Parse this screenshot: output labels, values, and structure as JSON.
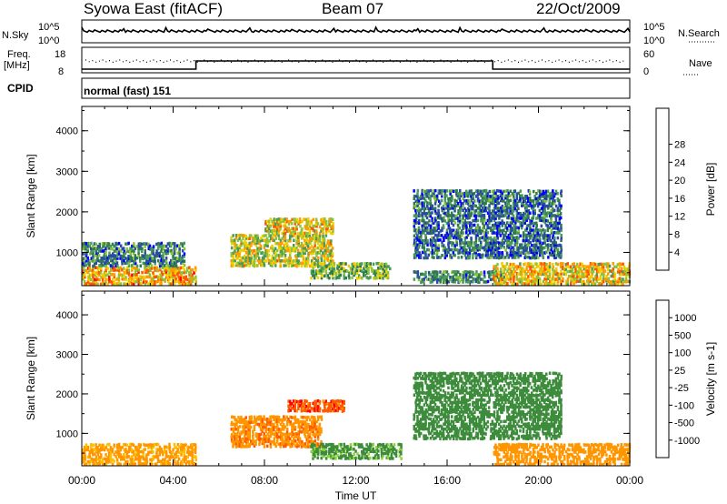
{
  "header": {
    "station": "Syowa East (fitACF)",
    "beam": "Beam 07",
    "date": "22/Oct/2009"
  },
  "top_panels": {
    "nsky_label": "N.Sky",
    "nsky_high": "10^5",
    "nsky_low": "10^0",
    "nsearch_label": "N.Search",
    "nsearch_high": "10^5",
    "nsearch_low": "10^0",
    "freq_label_1": "Freq.",
    "freq_label_2": "[MHz]",
    "freq_high": "18",
    "freq_low": "8",
    "nave_high": "60",
    "nave_low": "0",
    "nave_label": "Nave",
    "cpid_label": "CPID",
    "cpid_text": "normal (fast) 151"
  },
  "colors": {
    "power_scale": [
      "#0000ff",
      "#2a4aa8",
      "#2e7a4a",
      "#4a9a5a",
      "#8cc43c",
      "#f0d000",
      "#ff9a00",
      "#ff5500",
      "#ff0000"
    ],
    "velocity_scale": [
      "#ff0000",
      "#ff5a00",
      "#ff9600",
      "#ffbe00",
      "#c8c8c8",
      "#8cd23c",
      "#3c8c3c",
      "#2a6a6a",
      "#1a3cc8"
    ]
  },
  "chart_data": [
    {
      "type": "heatmap",
      "name": "power",
      "xlabel": "",
      "ylabel": "Slant Range [km]",
      "x_ticks": [
        "00:00",
        "04:00",
        "08:00",
        "12:00",
        "16:00",
        "20:00",
        "00:00"
      ],
      "y_ticks": [
        "1000",
        "2000",
        "3000",
        "4000"
      ],
      "xlim_hours": [
        0,
        24
      ],
      "ylim_km": [
        180,
        4600
      ],
      "colorbar_label": "Power [dB]",
      "colorbar_ticks": [
        "4",
        "8",
        "12",
        "16",
        "20",
        "24",
        "28"
      ],
      "regions": [
        {
          "t0": 0.0,
          "t1": 5.0,
          "r0": 250,
          "r1": 700,
          "v": 22
        },
        {
          "t0": 0.0,
          "t1": 4.5,
          "r0": 700,
          "r1": 1300,
          "v": 9
        },
        {
          "t0": 6.5,
          "t1": 11.0,
          "r0": 700,
          "r1": 1500,
          "v": 18
        },
        {
          "t0": 8.0,
          "t1": 11.0,
          "r0": 1500,
          "r1": 1900,
          "v": 20
        },
        {
          "t0": 10.0,
          "t1": 13.5,
          "r0": 400,
          "r1": 800,
          "v": 14
        },
        {
          "t0": 14.5,
          "t1": 18.5,
          "r0": 300,
          "r1": 600,
          "v": 10
        },
        {
          "t0": 14.5,
          "t1": 21.0,
          "r0": 900,
          "r1": 2600,
          "v": 8
        },
        {
          "t0": 18.0,
          "t1": 24.0,
          "r0": 250,
          "r1": 800,
          "v": 20
        }
      ]
    },
    {
      "type": "heatmap",
      "name": "velocity",
      "xlabel": "Time UT",
      "ylabel": "Slant Range [km]",
      "x_ticks": [
        "00:00",
        "04:00",
        "08:00",
        "12:00",
        "16:00",
        "20:00",
        "00:00"
      ],
      "y_ticks": [
        "1000",
        "2000",
        "3000",
        "4000"
      ],
      "xlim_hours": [
        0,
        24
      ],
      "ylim_km": [
        180,
        4600
      ],
      "colorbar_label": "Velocity [m s-1]",
      "colorbar_ticks": [
        "-1000",
        "-500",
        "-100",
        "-25",
        "25",
        "100",
        "500",
        "1000"
      ],
      "regions": [
        {
          "t0": 0.0,
          "t1": 5.0,
          "r0": 250,
          "r1": 800,
          "v": -150
        },
        {
          "t0": 6.5,
          "t1": 10.5,
          "r0": 700,
          "r1": 1500,
          "v": -400
        },
        {
          "t0": 9.0,
          "t1": 11.5,
          "r0": 1600,
          "r1": 1900,
          "v": -800
        },
        {
          "t0": 10.0,
          "t1": 14.0,
          "r0": 400,
          "r1": 800,
          "v": 150
        },
        {
          "t0": 14.5,
          "t1": 21.0,
          "r0": 900,
          "r1": 2600,
          "v": 300
        },
        {
          "t0": 18.0,
          "t1": 24.0,
          "r0": 250,
          "r1": 800,
          "v": -300
        }
      ]
    }
  ]
}
